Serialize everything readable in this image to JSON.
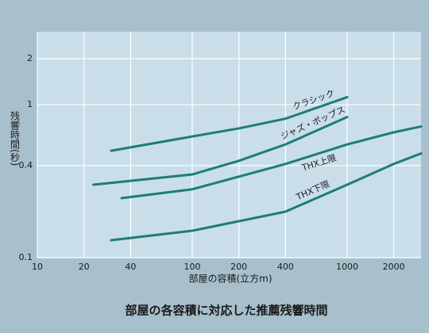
{
  "chart_data": {
    "type": "line",
    "title": "部屋の各容積に対応した推薦残響時間",
    "x_label": "部屋の容積(立方m)",
    "y_label": "残響時間(秒)",
    "xlog": true,
    "ylog": true,
    "grid": true,
    "xlim": [
      10,
      3000
    ],
    "ylim": [
      0.1,
      3
    ],
    "xticks": [
      10,
      20,
      40,
      100,
      200,
      400,
      1000,
      2000
    ],
    "yticks": [
      0.1,
      0.4,
      1,
      2
    ],
    "series": [
      {
        "name": "クラシック",
        "color": "#1d7c78",
        "x": [
          30,
          100,
          200,
          400,
          1000
        ],
        "values": [
          0.5,
          0.62,
          0.7,
          0.81,
          1.12
        ]
      },
      {
        "name": "ジャズ・ポップス",
        "color": "#1d7c78",
        "x": [
          23,
          100,
          200,
          400,
          1000
        ],
        "values": [
          0.3,
          0.35,
          0.43,
          0.55,
          0.83
        ]
      },
      {
        "name": "THX上限",
        "color": "#1d7c78",
        "x": [
          35,
          100,
          400,
          1000,
          2000,
          3000
        ],
        "values": [
          0.245,
          0.28,
          0.41,
          0.55,
          0.66,
          0.72
        ]
      },
      {
        "name": "THX下限",
        "color": "#1d7c78",
        "x": [
          30,
          100,
          400,
          1000,
          2000,
          3000
        ],
        "values": [
          0.13,
          0.15,
          0.2,
          0.3,
          0.41,
          0.48
        ]
      }
    ]
  }
}
